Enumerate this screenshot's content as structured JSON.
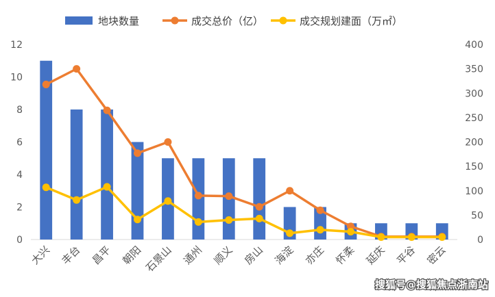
{
  "chart_data": {
    "type": "bar",
    "categories": [
      "大兴",
      "丰台",
      "昌平",
      "朝阳",
      "石景山",
      "通州",
      "顺义",
      "房山",
      "海淀",
      "亦庄",
      "怀柔",
      "延庆",
      "平谷",
      "密云"
    ],
    "series": [
      {
        "name": "地块数量",
        "type": "bar",
        "axis": "left",
        "color": "#4472C4",
        "values": [
          11,
          8,
          8,
          6,
          5,
          5,
          5,
          5,
          2,
          2,
          1,
          1,
          1,
          1
        ]
      },
      {
        "name": "成交总价（亿）",
        "type": "line",
        "axis": "right",
        "color": "#ED7D31",
        "values": [
          318,
          350,
          265,
          177,
          200,
          90,
          89,
          67,
          100,
          60,
          27,
          6,
          6,
          6
        ]
      },
      {
        "name": "成交规划建面（万㎡）",
        "type": "line",
        "axis": "right",
        "color": "#FFC000",
        "values": [
          107,
          81,
          108,
          41,
          79,
          36,
          40,
          43,
          13,
          20,
          16,
          5,
          5,
          5
        ]
      }
    ],
    "y_left": {
      "min": 0,
      "max": 12,
      "ticks": [
        "0",
        "2",
        "4",
        "6",
        "8",
        "10",
        "12"
      ]
    },
    "y_right": {
      "min": 0,
      "max": 400,
      "ticks": [
        "0",
        "50",
        "100",
        "150",
        "200",
        "250",
        "300",
        "350",
        "400"
      ]
    },
    "grid": false,
    "legend": "top-center"
  },
  "watermark": "搜狐号@搜狐焦点浙南站"
}
